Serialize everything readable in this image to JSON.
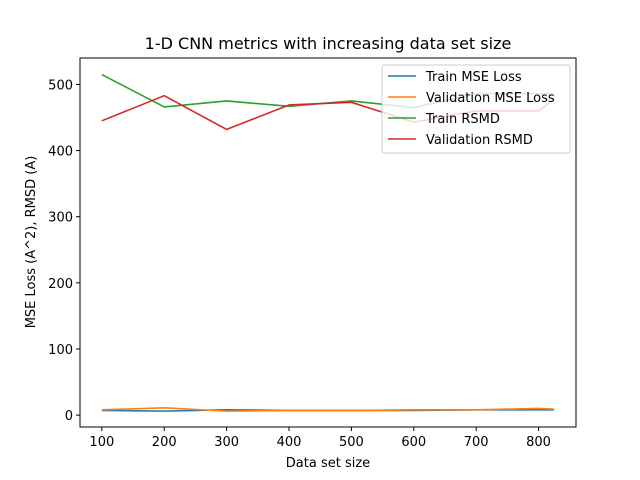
{
  "chart_data": {
    "type": "line",
    "title": "1-D CNN metrics with increasing data set size",
    "xlabel": "Data set size",
    "ylabel": "MSE Loss (A^2), RMSD (A)",
    "xlim": [
      65,
      860
    ],
    "ylim": [
      -18,
      540
    ],
    "xticks": [
      100,
      200,
      300,
      400,
      500,
      600,
      700,
      800
    ],
    "yticks": [
      0,
      100,
      200,
      300,
      400,
      500
    ],
    "grid": false,
    "legend_position": "top-right",
    "x": [
      100,
      200,
      300,
      400,
      500,
      600,
      700,
      800,
      825
    ],
    "series": [
      {
        "name": "Train MSE Loss",
        "color": "#1f77b4",
        "values": [
          7,
          6,
          8,
          7,
          7,
          7,
          8,
          8,
          8
        ]
      },
      {
        "name": "Validation MSE Loss",
        "color": "#ff7f0e",
        "values": [
          8,
          11,
          6,
          7,
          7,
          8,
          8,
          10,
          9
        ]
      },
      {
        "name": "Train RSMD",
        "color": "#2ca02c",
        "values": [
          515,
          466,
          475,
          467,
          475,
          465,
          486,
          486,
          486
        ]
      },
      {
        "name": "Validation RSMD",
        "color": "#d62728",
        "values": [
          445,
          483,
          432,
          469,
          473,
          443,
          460,
          460,
          478
        ]
      }
    ]
  }
}
